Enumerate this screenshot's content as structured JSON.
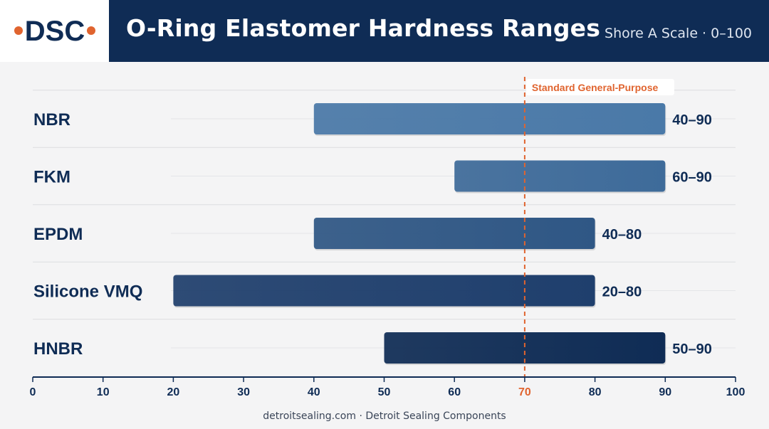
{
  "header": {
    "title": "O-Ring Elastomer Hardness Ranges",
    "subtitle": "Shore A Scale · 0–100",
    "logo_text": "DSC"
  },
  "footer": {
    "credit": "detroitsealing.com · Detroit Sealing Components"
  },
  "colors": {
    "header_bg": "#0f2c55",
    "accent": "#e0642f",
    "label_text": "#0f2c55",
    "bars": [
      "#4a79a8",
      "#3e6b9a",
      "#2f5785",
      "#1f3f6d",
      "#0f2c55"
    ]
  },
  "chart_data": {
    "type": "bar",
    "orientation": "horizontal",
    "title": "O-Ring Elastomer Hardness Ranges",
    "subtitle": "Shore A Scale · 0–100",
    "categories": [
      "NBR",
      "FKM",
      "EPDM",
      "Silicone VMQ",
      "HNBR"
    ],
    "ranges": [
      [
        40,
        90
      ],
      [
        60,
        90
      ],
      [
        40,
        80
      ],
      [
        20,
        80
      ],
      [
        50,
        90
      ]
    ],
    "range_labels": [
      "40–90",
      "60–90",
      "40–80",
      "20–80",
      "50–90"
    ],
    "xlim": [
      0,
      100
    ],
    "xticks": [
      0,
      10,
      20,
      30,
      40,
      50,
      60,
      70,
      80,
      90,
      100
    ],
    "grid": true,
    "reference_line": {
      "value": 70,
      "label": "Standard General-Purpose"
    }
  }
}
